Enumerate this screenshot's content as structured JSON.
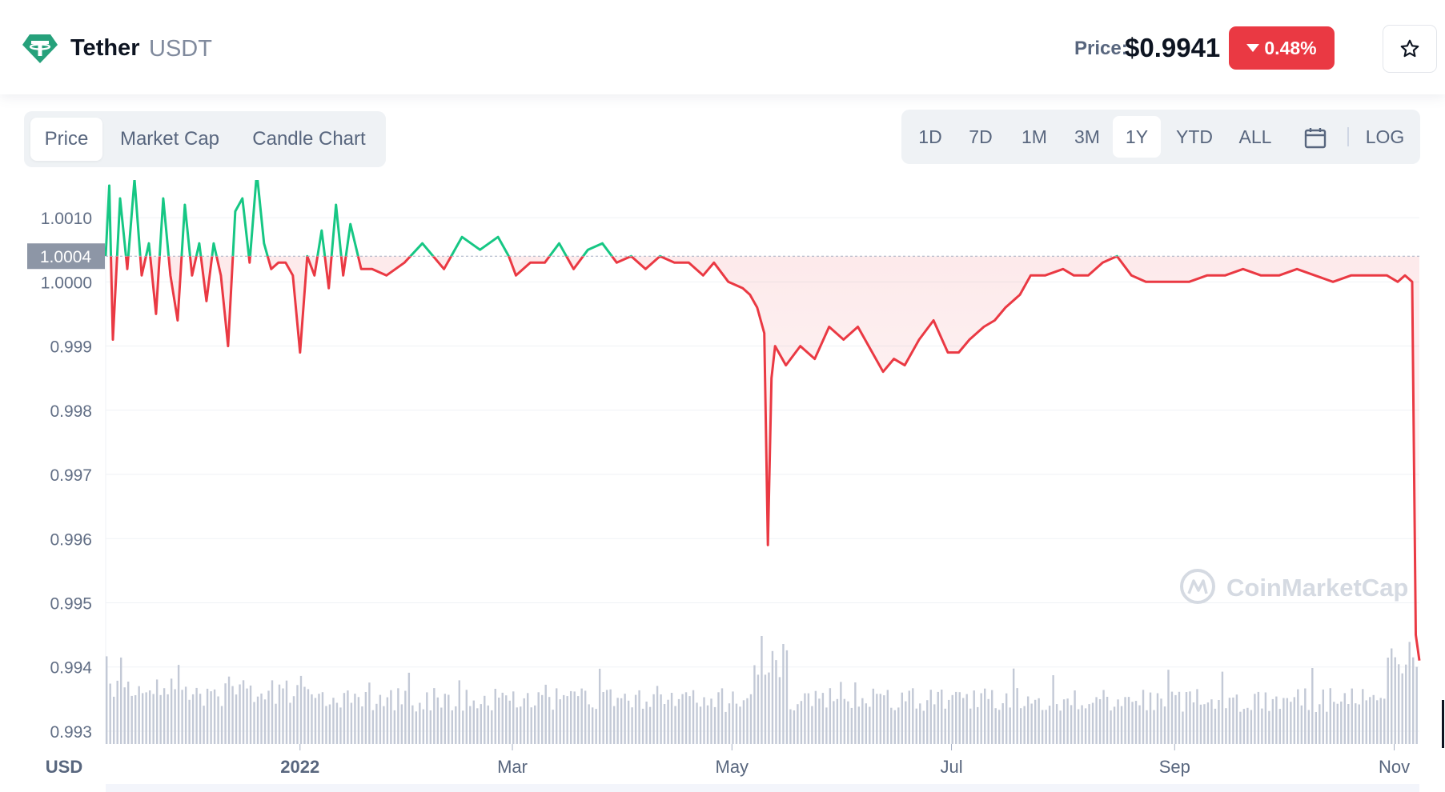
{
  "header": {
    "coin_name": "Tether",
    "coin_symbol": "USDT",
    "price_label": "Price:",
    "price_value": "$0.9941",
    "change_value": "0.48%",
    "change_direction": "down",
    "logo_icon": "tether-logo-icon",
    "star_icon": "star-icon"
  },
  "tabs": [
    "Price",
    "Market Cap",
    "Candle Chart"
  ],
  "active_tab": "Price",
  "ranges": [
    "1D",
    "7D",
    "1M",
    "3M",
    "1Y",
    "YTD",
    "ALL"
  ],
  "active_range": "1Y",
  "calendar_icon": "calendar-icon",
  "log_label": "LOG",
  "colors": {
    "up": "#16c784",
    "down": "#ea3943",
    "brand": "#26a17b",
    "volume": "#c3c9d6"
  },
  "chart_data": {
    "type": "line",
    "y_unit": "USD",
    "reference_price": 1.0004,
    "reference_label": "1.0004",
    "ylim": [
      0.9928,
      1.0014
    ],
    "yticks": [
      {
        "value": 1.001,
        "label": "1.0010"
      },
      {
        "value": 1.0,
        "label": "1.0000"
      },
      {
        "value": 0.999,
        "label": "0.999"
      },
      {
        "value": 0.998,
        "label": "0.998"
      },
      {
        "value": 0.997,
        "label": "0.997"
      },
      {
        "value": 0.996,
        "label": "0.996"
      },
      {
        "value": 0.995,
        "label": "0.995"
      },
      {
        "value": 0.994,
        "label": "0.994"
      },
      {
        "value": 0.993,
        "label": "0.993"
      }
    ],
    "x_start": "2021-11-08",
    "x_end": "2022-11-08",
    "xticks": [
      {
        "date": "2022-01-01",
        "label": "2022"
      },
      {
        "date": "2022-03-01",
        "label": "Mar"
      },
      {
        "date": "2022-05-01",
        "label": "May"
      },
      {
        "date": "2022-07-01",
        "label": "Jul"
      },
      {
        "date": "2022-09-01",
        "label": "Sep"
      },
      {
        "date": "2022-11-01",
        "label": "Nov"
      }
    ],
    "series": [
      {
        "points": [
          [
            "2021-11-08",
            1.0004
          ],
          [
            "2021-11-09",
            1.0015
          ],
          [
            "2021-11-10",
            0.9991
          ],
          [
            "2021-11-12",
            1.0013
          ],
          [
            "2021-11-14",
            1.0002
          ],
          [
            "2021-11-16",
            1.0016
          ],
          [
            "2021-11-18",
            1.0001
          ],
          [
            "2021-11-20",
            1.0006
          ],
          [
            "2021-11-22",
            0.9995
          ],
          [
            "2021-11-24",
            1.0013
          ],
          [
            "2021-11-26",
            1.0001
          ],
          [
            "2021-11-28",
            0.9994
          ],
          [
            "2021-11-30",
            1.0012
          ],
          [
            "2021-12-02",
            1.0001
          ],
          [
            "2021-12-04",
            1.0006
          ],
          [
            "2021-12-06",
            0.9997
          ],
          [
            "2021-12-08",
            1.0006
          ],
          [
            "2021-12-10",
            1.0001
          ],
          [
            "2021-12-12",
            0.999
          ],
          [
            "2021-12-14",
            1.0011
          ],
          [
            "2021-12-16",
            1.0013
          ],
          [
            "2021-12-18",
            1.0003
          ],
          [
            "2021-12-20",
            1.0017
          ],
          [
            "2021-12-22",
            1.0006
          ],
          [
            "2021-12-24",
            1.0002
          ],
          [
            "2021-12-26",
            1.0003
          ],
          [
            "2021-12-28",
            1.0003
          ],
          [
            "2021-12-30",
            1.0001
          ],
          [
            "2022-01-01",
            0.9989
          ],
          [
            "2022-01-03",
            1.0004
          ],
          [
            "2022-01-05",
            1.0001
          ],
          [
            "2022-01-07",
            1.0008
          ],
          [
            "2022-01-09",
            0.9999
          ],
          [
            "2022-01-11",
            1.0012
          ],
          [
            "2022-01-13",
            1.0001
          ],
          [
            "2022-01-15",
            1.0009
          ],
          [
            "2022-01-18",
            1.0002
          ],
          [
            "2022-01-21",
            1.0002
          ],
          [
            "2022-01-25",
            1.0001
          ],
          [
            "2022-01-30",
            1.0003
          ],
          [
            "2022-02-04",
            1.0006
          ],
          [
            "2022-02-10",
            1.0002
          ],
          [
            "2022-02-15",
            1.0007
          ],
          [
            "2022-02-20",
            1.0005
          ],
          [
            "2022-02-25",
            1.0007
          ],
          [
            "2022-02-28",
            1.0004
          ],
          [
            "2022-03-02",
            1.0001
          ],
          [
            "2022-03-06",
            1.0003
          ],
          [
            "2022-03-10",
            1.0003
          ],
          [
            "2022-03-14",
            1.0006
          ],
          [
            "2022-03-18",
            1.0002
          ],
          [
            "2022-03-22",
            1.0005
          ],
          [
            "2022-03-26",
            1.0006
          ],
          [
            "2022-03-30",
            1.0003
          ],
          [
            "2022-04-03",
            1.0004
          ],
          [
            "2022-04-07",
            1.0002
          ],
          [
            "2022-04-11",
            1.0004
          ],
          [
            "2022-04-15",
            1.0003
          ],
          [
            "2022-04-19",
            1.0003
          ],
          [
            "2022-04-23",
            1.0001
          ],
          [
            "2022-04-26",
            1.0003
          ],
          [
            "2022-04-30",
            1.0
          ],
          [
            "2022-05-04",
            0.9999
          ],
          [
            "2022-05-06",
            0.9998
          ],
          [
            "2022-05-08",
            0.9996
          ],
          [
            "2022-05-10",
            0.9992
          ],
          [
            "2022-05-11",
            0.9959
          ],
          [
            "2022-05-12",
            0.9985
          ],
          [
            "2022-05-13",
            0.999
          ],
          [
            "2022-05-16",
            0.9987
          ],
          [
            "2022-05-20",
            0.999
          ],
          [
            "2022-05-24",
            0.9988
          ],
          [
            "2022-05-28",
            0.9993
          ],
          [
            "2022-06-01",
            0.9991
          ],
          [
            "2022-06-05",
            0.9993
          ],
          [
            "2022-06-09",
            0.9989
          ],
          [
            "2022-06-12",
            0.9986
          ],
          [
            "2022-06-15",
            0.9988
          ],
          [
            "2022-06-18",
            0.9987
          ],
          [
            "2022-06-22",
            0.9991
          ],
          [
            "2022-06-26",
            0.9994
          ],
          [
            "2022-06-30",
            0.9989
          ],
          [
            "2022-07-03",
            0.9989
          ],
          [
            "2022-07-06",
            0.9991
          ],
          [
            "2022-07-10",
            0.9993
          ],
          [
            "2022-07-13",
            0.9994
          ],
          [
            "2022-07-16",
            0.9996
          ],
          [
            "2022-07-20",
            0.9998
          ],
          [
            "2022-07-23",
            1.0001
          ],
          [
            "2022-07-27",
            1.0001
          ],
          [
            "2022-08-01",
            1.0002
          ],
          [
            "2022-08-04",
            1.0001
          ],
          [
            "2022-08-08",
            1.0001
          ],
          [
            "2022-08-12",
            1.0003
          ],
          [
            "2022-08-16",
            1.0004
          ],
          [
            "2022-08-20",
            1.0001
          ],
          [
            "2022-08-24",
            1.0
          ],
          [
            "2022-08-30",
            1.0
          ],
          [
            "2022-09-05",
            1.0
          ],
          [
            "2022-09-10",
            1.0001
          ],
          [
            "2022-09-15",
            1.0001
          ],
          [
            "2022-09-20",
            1.0002
          ],
          [
            "2022-09-25",
            1.0001
          ],
          [
            "2022-09-30",
            1.0001
          ],
          [
            "2022-10-05",
            1.0002
          ],
          [
            "2022-10-10",
            1.0001
          ],
          [
            "2022-10-15",
            1.0
          ],
          [
            "2022-10-20",
            1.0001
          ],
          [
            "2022-10-25",
            1.0001
          ],
          [
            "2022-10-30",
            1.0001
          ],
          [
            "2022-11-02",
            1.0
          ],
          [
            "2022-11-04",
            1.0001
          ],
          [
            "2022-11-06",
            1.0
          ],
          [
            "2022-11-07",
            0.9945
          ],
          [
            "2022-11-08",
            0.9941
          ]
        ]
      }
    ],
    "volume_shown": true,
    "grid": true,
    "watermark": "CoinMarketCap"
  }
}
